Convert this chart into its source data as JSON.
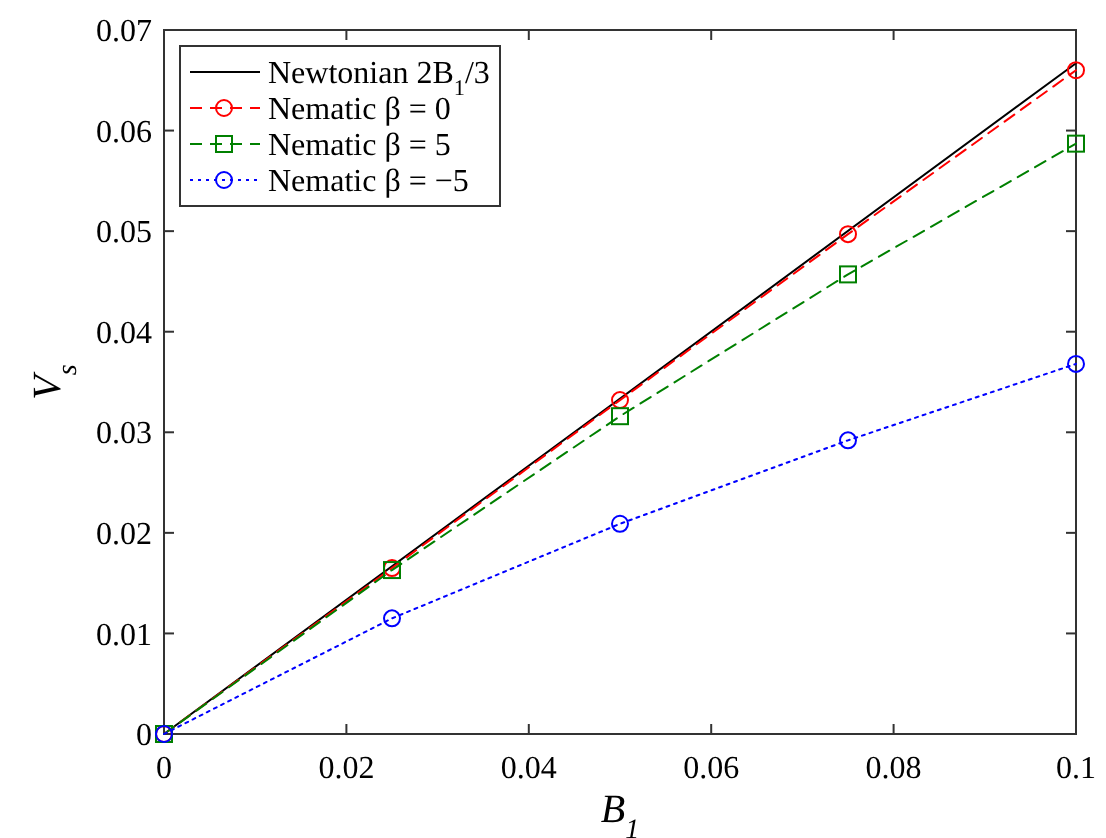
{
  "chart_data": {
    "type": "line",
    "xlabel": "B$_{1}$",
    "ylabel": "V$_{s}$",
    "xlim": [
      0,
      0.1
    ],
    "ylim": [
      0,
      0.07
    ],
    "xticks": [
      0,
      0.02,
      0.04,
      0.06,
      0.08,
      0.1
    ],
    "yticks": [
      0,
      0.01,
      0.02,
      0.03,
      0.04,
      0.05,
      0.06,
      0.07
    ],
    "grid": false,
    "legend": "top left",
    "series": [
      {
        "name": "Newtonian 2B$_{1}$/3",
        "color": "#000000",
        "x": [
          0,
          0.1
        ],
        "values": [
          0,
          0.0667
        ],
        "line_style": "solid",
        "marker": "none"
      },
      {
        "name": "Nematic β = 0",
        "color": "#ff0000",
        "x": [
          0,
          0.025,
          0.05,
          0.075,
          0.1
        ],
        "values": [
          0,
          0.0165,
          0.0332,
          0.0497,
          0.066
        ],
        "line_style": "dashed",
        "marker": "circle"
      },
      {
        "name": "Nematic β = 5",
        "color": "#008000",
        "x": [
          0,
          0.025,
          0.05,
          0.075,
          0.1
        ],
        "values": [
          0,
          0.0163,
          0.0316,
          0.0457,
          0.0587
        ],
        "line_style": "dashed",
        "marker": "square"
      },
      {
        "name": "Nematic β = −5",
        "color": "#0000ff",
        "x": [
          0,
          0.025,
          0.05,
          0.075,
          0.1
        ],
        "values": [
          0,
          0.0115,
          0.0209,
          0.0292,
          0.0368
        ],
        "line_style": "dotted",
        "marker": "circle"
      }
    ]
  }
}
